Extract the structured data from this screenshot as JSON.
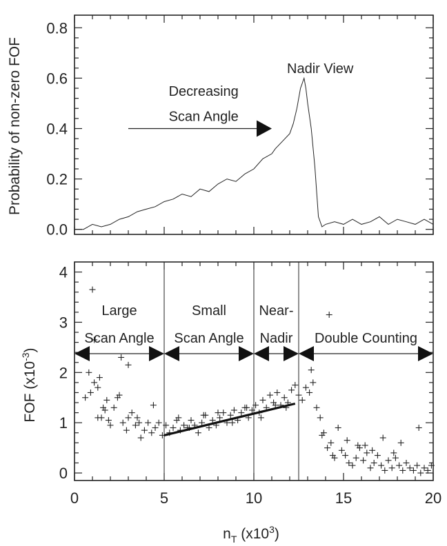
{
  "chart_data": [
    {
      "type": "line",
      "ylabel": "Probability of non-zero FOF",
      "xlim": [
        0,
        20
      ],
      "ylim": [
        -0.02,
        0.85
      ],
      "yticks": [
        0.0,
        0.2,
        0.4,
        0.6,
        0.8
      ],
      "ytick_labels": [
        "0.0",
        "0.2",
        "0.4",
        "0.6",
        "0.8"
      ],
      "series": [
        {
          "x": [
            0.0,
            0.5,
            1.0,
            1.5,
            2.0,
            2.5,
            3.0,
            3.5,
            4.0,
            4.5,
            5.0,
            5.5,
            6.0,
            6.5,
            7.0,
            7.5,
            8.0,
            8.5,
            9.0,
            9.5,
            10.0,
            10.5,
            11.0,
            11.2,
            11.6,
            12.0,
            12.2,
            12.4,
            12.6,
            12.8,
            12.9,
            13.0,
            13.2,
            13.4,
            13.6,
            13.8,
            14.0,
            14.5,
            15.0,
            15.5,
            16.0,
            16.5,
            17.0,
            17.5,
            18.0,
            18.5,
            19.0,
            19.5,
            20.0
          ],
          "y": [
            0.0,
            0.0,
            0.02,
            0.01,
            0.02,
            0.04,
            0.05,
            0.07,
            0.08,
            0.09,
            0.11,
            0.12,
            0.14,
            0.13,
            0.16,
            0.15,
            0.18,
            0.2,
            0.19,
            0.22,
            0.24,
            0.28,
            0.3,
            0.32,
            0.35,
            0.38,
            0.42,
            0.48,
            0.56,
            0.6,
            0.56,
            0.5,
            0.4,
            0.25,
            0.05,
            0.01,
            0.02,
            0.03,
            0.02,
            0.04,
            0.02,
            0.03,
            0.05,
            0.02,
            0.04,
            0.03,
            0.02,
            0.04,
            0.02
          ]
        }
      ],
      "annotations": [
        {
          "text": "Nadir View",
          "x": 13.7,
          "y": 0.62
        },
        {
          "text": "Decreasing",
          "x": 7.2,
          "y": 0.53
        },
        {
          "text": "Scan Angle",
          "x": 7.2,
          "y": 0.43
        }
      ],
      "arrow": {
        "x_from": 3.0,
        "x_to": 11.0,
        "y": 0.4
      }
    },
    {
      "type": "scatter",
      "xlabel": "n",
      "xlabel_sub": "T",
      "xlabel_unit": " (x10",
      "xlabel_sup": "3",
      "xlabel_tail": ")",
      "ylabel": "FOF (x10",
      "ylabel_sup": "-3",
      "ylabel_tail": ")",
      "xlim": [
        0,
        20
      ],
      "ylim": [
        -0.15,
        4.2
      ],
      "xticks": [
        0,
        5,
        10,
        15,
        20
      ],
      "xtick_labels": [
        "0",
        "5",
        "10",
        "15",
        "20"
      ],
      "yticks": [
        0,
        1,
        2,
        3,
        4
      ],
      "ytick_labels": [
        "0",
        "1",
        "2",
        "3",
        "4"
      ],
      "dividers": [
        5,
        10,
        12.5
      ],
      "regions": [
        {
          "line1": "Large",
          "line2": "Scan Angle",
          "x_from": 0,
          "x_to": 5
        },
        {
          "line1": "Small",
          "line2": "Scan Angle",
          "x_from": 5,
          "x_to": 10
        },
        {
          "line1": "Near-",
          "line2": "Nadir",
          "x_from": 10,
          "x_to": 12.5
        },
        {
          "line1": "",
          "line2": "Double Counting",
          "x_from": 12.5,
          "x_to": 20
        }
      ],
      "fit_line": {
        "x": [
          5.0,
          12.3
        ],
        "y": [
          0.75,
          1.38
        ]
      },
      "points": {
        "x": [
          0.6,
          0.8,
          1.0,
          1.1,
          1.3,
          1.4,
          1.5,
          1.6,
          1.7,
          1.9,
          2.0,
          2.2,
          2.4,
          2.5,
          2.7,
          2.9,
          3.0,
          3.2,
          3.4,
          3.5,
          3.7,
          3.9,
          4.1,
          4.3,
          4.5,
          4.7,
          4.9,
          5.1,
          5.3,
          5.5,
          5.7,
          5.9,
          6.1,
          6.3,
          6.5,
          6.7,
          6.9,
          7.1,
          7.3,
          7.5,
          7.7,
          7.9,
          8.1,
          8.3,
          8.5,
          8.7,
          8.9,
          9.1,
          9.3,
          9.5,
          9.7,
          9.9,
          10.1,
          10.3,
          10.5,
          10.7,
          10.9,
          11.1,
          11.3,
          11.5,
          11.7,
          11.9,
          12.1,
          12.3,
          12.5,
          12.7,
          12.9,
          13.1,
          13.3,
          13.5,
          13.7,
          13.9,
          14.1,
          14.3,
          14.5,
          14.7,
          14.9,
          15.1,
          15.3,
          15.5,
          15.7,
          15.9,
          16.1,
          16.3,
          16.5,
          16.7,
          16.9,
          17.1,
          17.3,
          17.5,
          17.7,
          17.9,
          18.1,
          18.3,
          18.5,
          18.7,
          18.9,
          19.1,
          19.3,
          19.5,
          19.7,
          19.9,
          1.1,
          2.6,
          3.0,
          4.4,
          0.9,
          1.3,
          1.8,
          3.6,
          5.8,
          6.4,
          7.2,
          8.0,
          8.8,
          9.6,
          10.4,
          11.2,
          11.8,
          13.2,
          14.2,
          15.2,
          16.2,
          17.2,
          18.2,
          19.2,
          13.8,
          15.8,
          17.8,
          14.4,
          16.6
        ],
        "y": [
          1.5,
          2.0,
          3.65,
          1.8,
          1.7,
          1.9,
          1.1,
          1.3,
          1.25,
          1.05,
          0.95,
          1.3,
          1.5,
          1.55,
          1.0,
          0.85,
          1.1,
          1.2,
          0.95,
          1.1,
          0.7,
          0.85,
          1.0,
          0.8,
          0.9,
          1.0,
          0.75,
          0.95,
          0.8,
          0.9,
          1.05,
          0.85,
          0.95,
          0.9,
          1.05,
          0.95,
          0.8,
          1.0,
          1.15,
          0.9,
          1.05,
          0.95,
          1.1,
          1.2,
          1.0,
          1.15,
          1.25,
          1.05,
          1.2,
          1.3,
          1.1,
          1.25,
          1.35,
          1.2,
          1.45,
          1.3,
          1.55,
          1.4,
          1.6,
          1.35,
          1.5,
          1.4,
          1.65,
          1.75,
          1.55,
          1.45,
          1.7,
          1.6,
          1.8,
          1.3,
          1.1,
          0.8,
          0.5,
          0.6,
          0.3,
          0.9,
          0.45,
          0.35,
          0.2,
          0.15,
          0.3,
          0.5,
          0.25,
          0.4,
          0.1,
          0.2,
          0.35,
          0.15,
          0.05,
          0.25,
          0.1,
          0.3,
          0.15,
          0.05,
          0.2,
          0.1,
          0.05,
          0.15,
          0.0,
          0.1,
          0.05,
          0.15,
          2.65,
          2.3,
          2.15,
          1.35,
          1.6,
          1.1,
          1.45,
          1.0,
          1.1,
          0.9,
          1.15,
          1.2,
          1.0,
          1.3,
          1.1,
          1.35,
          1.3,
          2.05,
          3.15,
          0.65,
          0.55,
          0.7,
          0.6,
          0.9,
          0.75,
          0.55,
          0.4,
          0.35,
          0.45
        ]
      }
    }
  ]
}
